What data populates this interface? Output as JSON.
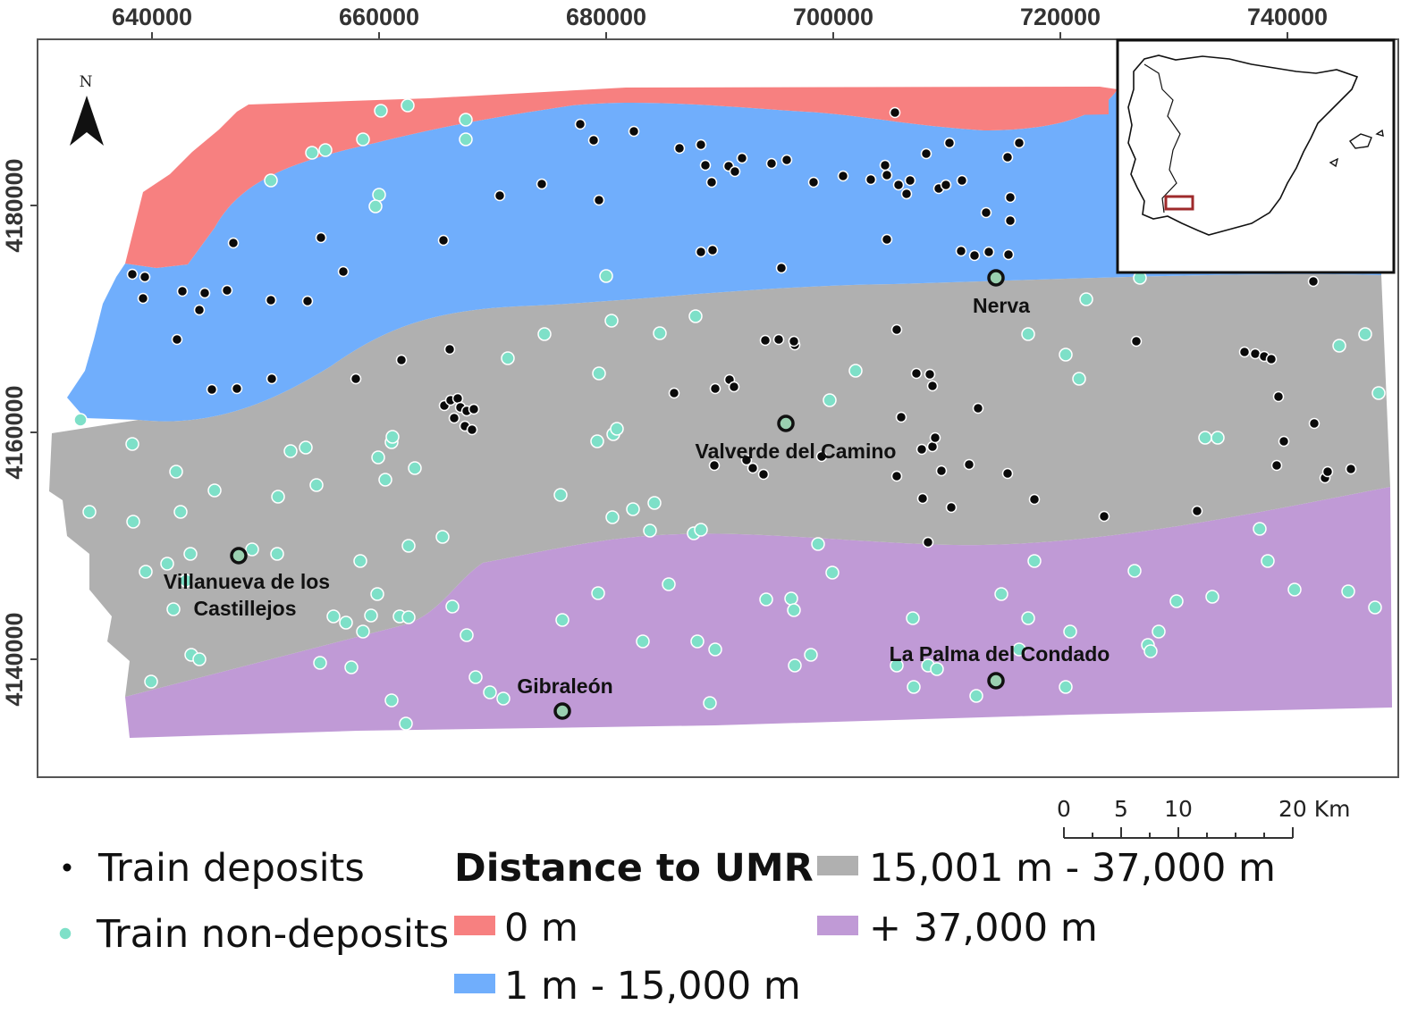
{
  "map": {
    "x_ticks": [
      "640000",
      "660000",
      "680000",
      "700000",
      "720000",
      "740000"
    ],
    "y_ticks": [
      "4180000",
      "4160000",
      "4140000"
    ],
    "north_label": "N",
    "towns": [
      {
        "name": "Nerva"
      },
      {
        "name": "Valverde del Camino"
      },
      {
        "name": "Villanueva de los",
        "name2": "Castillejos"
      },
      {
        "name": "La Palma del Condado"
      },
      {
        "name": "Gibraleón"
      }
    ],
    "colors": {
      "zone_0": "#f78080",
      "zone_1": "#70aefc",
      "zone_2": "#b0b0b0",
      "zone_3": "#c09ad6",
      "deposit": "#0a0a0a",
      "non_deposit": "#7ee0c8",
      "inset_box": "#9e2a2b"
    },
    "scale_bar": {
      "labels": [
        "0",
        "5",
        "10",
        "20 Km"
      ]
    }
  },
  "legend": {
    "deposits": "Train deposits",
    "non_deposits": "Train non-deposits",
    "title": "Distance to UMR",
    "classes": [
      "0 m",
      "1 m - 15,000 m",
      "15,001 m - 37,000 m",
      "+ 37,000 m"
    ]
  }
}
